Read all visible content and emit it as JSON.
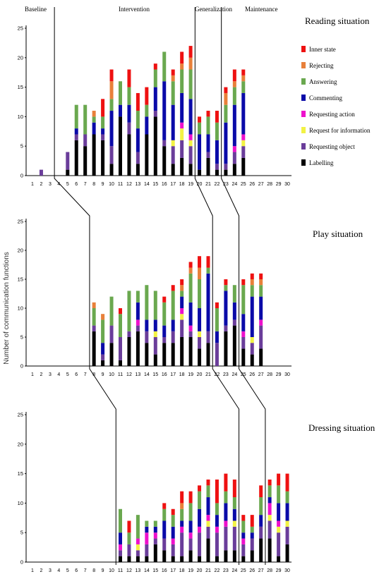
{
  "figure": {
    "ylabel": "Number of communication functions",
    "phases": [
      "Baseline",
      "Intervention",
      "Generalization",
      "Maintenance"
    ]
  },
  "legend": [
    {
      "name": "Inner state",
      "color": "#ee1111"
    },
    {
      "name": "Rejecting",
      "color": "#e8803a"
    },
    {
      "name": "Answering",
      "color": "#6aa84f"
    },
    {
      "name": "Commenting",
      "color": "#0a0aa8"
    },
    {
      "name": "Requesting action",
      "color": "#ee11cc"
    },
    {
      "name": "Request for information",
      "color": "#f2f244"
    },
    {
      "name": "Requesting object",
      "color": "#6a3d9a"
    },
    {
      "name": "Labelling",
      "color": "#000000"
    }
  ],
  "chart_data": [
    {
      "type": "bar",
      "title": "Reading situation",
      "stacked": true,
      "ylim": [
        0,
        25
      ],
      "yticks": [
        0,
        5,
        10,
        15,
        20,
        25
      ],
      "categories": [
        "1",
        "2",
        "3",
        "4",
        "5",
        "6",
        "7",
        "8",
        "9",
        "10",
        "11",
        "12",
        "13",
        "14",
        "15",
        "16",
        "17",
        "18",
        "19",
        "20",
        "21",
        "22",
        "23",
        "24",
        "25",
        "26",
        "27",
        "28",
        "29",
        "30"
      ],
      "phase_change_after_session": [
        3,
        19,
        22
      ],
      "series": [
        {
          "name": "Labelling",
          "values": [
            0,
            0,
            0,
            0,
            1,
            6,
            5,
            7,
            6,
            2,
            10,
            7,
            2,
            7,
            10,
            5,
            2,
            3,
            2,
            1,
            3,
            1,
            1,
            2,
            3,
            0,
            0,
            0,
            0,
            0
          ]
        },
        {
          "name": "Requesting object",
          "values": [
            0,
            1,
            0,
            0,
            3,
            1,
            2,
            0,
            1,
            3,
            0,
            2,
            2,
            0,
            1,
            1,
            3,
            3,
            3,
            0,
            1,
            1,
            1,
            2,
            2,
            0,
            0,
            0,
            0,
            0
          ]
        },
        {
          "name": "Request for information",
          "values": [
            0,
            0,
            0,
            0,
            0,
            0,
            0,
            0,
            0,
            0,
            0,
            0,
            0,
            0,
            0,
            0,
            1,
            2,
            1,
            0,
            0,
            0,
            0,
            0,
            1,
            0,
            0,
            0,
            0,
            0
          ]
        },
        {
          "name": "Requesting action",
          "values": [
            0,
            0,
            0,
            0,
            0,
            0,
            0,
            0,
            0,
            0,
            0,
            0,
            0,
            0,
            0,
            0,
            0,
            1,
            1,
            0,
            0,
            0,
            0,
            1,
            1,
            0,
            0,
            0,
            0,
            0
          ]
        },
        {
          "name": "Commenting",
          "values": [
            0,
            0,
            0,
            0,
            0,
            1,
            0,
            2,
            1,
            6,
            2,
            3,
            4,
            3,
            4,
            10,
            6,
            5,
            6,
            6,
            3,
            4,
            7,
            7,
            7,
            0,
            0,
            0,
            0,
            0
          ]
        },
        {
          "name": "Answering",
          "values": [
            0,
            0,
            0,
            0,
            0,
            4,
            5,
            1,
            2,
            2,
            4,
            3,
            3,
            2,
            3,
            5,
            4,
            4,
            5,
            2,
            3,
            3,
            3,
            3,
            2,
            0,
            0,
            0,
            0,
            0
          ]
        },
        {
          "name": "Rejecting",
          "values": [
            0,
            0,
            0,
            0,
            0,
            0,
            0,
            1,
            0,
            3,
            0,
            0,
            0,
            0,
            0,
            0,
            1,
            1,
            2,
            0,
            0,
            0,
            2,
            1,
            1,
            0,
            0,
            0,
            0,
            0
          ]
        },
        {
          "name": "Inner state",
          "values": [
            0,
            0,
            0,
            0,
            0,
            0,
            0,
            0,
            3,
            2,
            0,
            3,
            3,
            3,
            1,
            0,
            1,
            2,
            2,
            1,
            1,
            2,
            1,
            2,
            1,
            0,
            0,
            0,
            0,
            0
          ]
        }
      ]
    },
    {
      "type": "bar",
      "title": "Play situation",
      "stacked": true,
      "ylim": [
        0,
        25
      ],
      "yticks": [
        0,
        5,
        10,
        15,
        20,
        25
      ],
      "categories": [
        "1",
        "2",
        "3",
        "4",
        "5",
        "6",
        "7",
        "8",
        "9",
        "10",
        "11",
        "12",
        "13",
        "14",
        "15",
        "16",
        "17",
        "18",
        "19",
        "20",
        "21",
        "22",
        "23",
        "24",
        "25",
        "26",
        "27",
        "28",
        "29",
        "30"
      ],
      "phase_change_after_session": [
        7,
        21,
        24
      ],
      "series": [
        {
          "name": "Labelling",
          "values": [
            0,
            0,
            0,
            0,
            0,
            0,
            0,
            6,
            1,
            4,
            1,
            5,
            6,
            4,
            2,
            4,
            4,
            5,
            5,
            3,
            4,
            0,
            6,
            7,
            3,
            2,
            3,
            0,
            0,
            0
          ]
        },
        {
          "name": "Requesting object",
          "values": [
            0,
            0,
            0,
            0,
            0,
            0,
            0,
            1,
            1,
            3,
            4,
            1,
            1,
            2,
            3,
            1,
            2,
            3,
            1,
            2,
            2,
            4,
            1,
            1,
            2,
            2,
            4,
            0,
            0,
            0
          ]
        },
        {
          "name": "Request for information",
          "values": [
            0,
            0,
            0,
            0,
            0,
            0,
            0,
            0,
            0,
            0,
            0,
            0,
            0,
            0,
            1,
            0,
            0,
            1,
            0,
            1,
            0,
            0,
            0,
            0,
            0,
            1,
            0,
            0,
            0,
            0
          ]
        },
        {
          "name": "Requesting action",
          "values": [
            0,
            0,
            0,
            0,
            0,
            0,
            0,
            0,
            0,
            0,
            0,
            0,
            1,
            0,
            0,
            0,
            0,
            1,
            1,
            0,
            0,
            0,
            0,
            0,
            1,
            0,
            1,
            0,
            0,
            0
          ]
        },
        {
          "name": "Commenting",
          "values": [
            0,
            0,
            0,
            0,
            0,
            0,
            0,
            0,
            2,
            0,
            0,
            0,
            3,
            2,
            2,
            2,
            2,
            2,
            4,
            4,
            10,
            2,
            6,
            3,
            3,
            7,
            4,
            0,
            0,
            0
          ]
        },
        {
          "name": "Answering",
          "values": [
            0,
            0,
            0,
            0,
            0,
            0,
            0,
            3,
            4,
            5,
            4,
            7,
            2,
            6,
            5,
            4,
            5,
            1,
            5,
            5,
            1,
            4,
            1,
            3,
            5,
            2,
            2,
            0,
            0,
            0
          ]
        },
        {
          "name": "Rejecting",
          "values": [
            0,
            0,
            0,
            0,
            0,
            0,
            0,
            1,
            1,
            0,
            0,
            0,
            0,
            0,
            0,
            0,
            0,
            1,
            1,
            2,
            0,
            0,
            0,
            0,
            0,
            1,
            1,
            0,
            0,
            0
          ]
        },
        {
          "name": "Inner state",
          "values": [
            0,
            0,
            0,
            0,
            0,
            0,
            0,
            0,
            0,
            0,
            1,
            0,
            0,
            0,
            0,
            1,
            1,
            1,
            1,
            2,
            2,
            1,
            1,
            0,
            1,
            1,
            1,
            0,
            0,
            0
          ]
        }
      ]
    },
    {
      "type": "bar",
      "title": "Dressing situation",
      "stacked": true,
      "ylim": [
        0,
        25
      ],
      "yticks": [
        0,
        5,
        10,
        15,
        20,
        25
      ],
      "categories": [
        "1",
        "2",
        "3",
        "4",
        "5",
        "6",
        "7",
        "8",
        "9",
        "10",
        "11",
        "12",
        "13",
        "14",
        "15",
        "16",
        "17",
        "18",
        "19",
        "20",
        "21",
        "22",
        "23",
        "24",
        "25",
        "26",
        "27",
        "28",
        "29",
        "30"
      ],
      "phase_change_after_session": [
        10,
        24,
        27
      ],
      "series": [
        {
          "name": "Labelling",
          "values": [
            0,
            0,
            0,
            0,
            0,
            0,
            0,
            0,
            0,
            0,
            1,
            1,
            1,
            1,
            3,
            2,
            1,
            1,
            2,
            1,
            4,
            1,
            2,
            2,
            1,
            2,
            4,
            4,
            1,
            3
          ]
        },
        {
          "name": "Requesting object",
          "values": [
            0,
            0,
            0,
            0,
            0,
            0,
            0,
            0,
            0,
            0,
            1,
            2,
            1,
            2,
            1,
            2,
            2,
            4,
            2,
            4,
            2,
            4,
            4,
            4,
            2,
            2,
            2,
            3,
            4,
            3
          ]
        },
        {
          "name": "Request for information",
          "values": [
            0,
            0,
            0,
            0,
            0,
            0,
            0,
            0,
            0,
            0,
            0,
            0,
            1,
            0,
            0,
            0,
            0,
            0,
            0,
            0,
            1,
            0,
            0,
            1,
            0,
            0,
            0,
            1,
            1,
            1
          ]
        },
        {
          "name": "Requesting action",
          "values": [
            0,
            0,
            0,
            0,
            0,
            0,
            0,
            0,
            0,
            0,
            1,
            0,
            1,
            2,
            1,
            0,
            1,
            1,
            1,
            1,
            1,
            1,
            1,
            0,
            1,
            0,
            0,
            2,
            1,
            0
          ]
        },
        {
          "name": "Commenting",
          "values": [
            0,
            0,
            0,
            0,
            0,
            0,
            0,
            0,
            0,
            0,
            2,
            0,
            0,
            1,
            1,
            3,
            2,
            1,
            2,
            3,
            3,
            2,
            3,
            2,
            1,
            1,
            2,
            1,
            3,
            3
          ]
        },
        {
          "name": "Answering",
          "values": [
            0,
            0,
            0,
            0,
            0,
            0,
            0,
            0,
            0,
            0,
            4,
            2,
            4,
            1,
            1,
            2,
            2,
            2,
            3,
            3,
            2,
            2,
            2,
            2,
            2,
            1,
            3,
            2,
            3,
            2
          ]
        },
        {
          "name": "Rejecting",
          "values": [
            0,
            0,
            0,
            0,
            0,
            0,
            0,
            0,
            0,
            0,
            0,
            0,
            0,
            0,
            0,
            0,
            0,
            1,
            0,
            0,
            0,
            0,
            0,
            0,
            0,
            0,
            0,
            0,
            0,
            0
          ]
        },
        {
          "name": "Inner state",
          "values": [
            0,
            0,
            0,
            0,
            0,
            0,
            0,
            0,
            0,
            0,
            0,
            2,
            0,
            0,
            0,
            1,
            1,
            2,
            2,
            1,
            1,
            4,
            3,
            3,
            1,
            2,
            2,
            1,
            2,
            3
          ]
        }
      ]
    }
  ]
}
